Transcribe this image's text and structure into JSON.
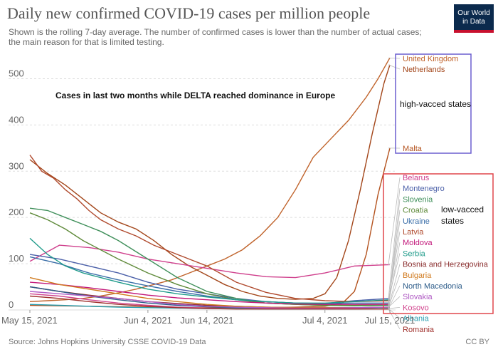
{
  "header": {
    "title": "Daily new confirmed COVID-19 cases per million people",
    "subtitle": "Shown is the rolling 7-day average. The number of confirmed cases is lower than the number of actual cases; the main reason for that is limited testing.",
    "logo_line1": "Our World",
    "logo_line2": "in Data"
  },
  "footer": {
    "source": "Source: Johns Hopkins University CSSE COVID-19 Data",
    "license": "CC BY"
  },
  "annotations": {
    "main": "Cases in last two months while DELTA reached dominance in Europe",
    "high_group": "high-vacced states",
    "low_group_line1": "low-vacced",
    "low_group_line2": "states"
  },
  "colors": {
    "high_box": "#6b5fcf",
    "low_box": "#e0474c",
    "grid": "#dddddd",
    "axis_text": "#666666"
  },
  "chart_data": {
    "type": "line",
    "title": "Daily new confirmed COVID-19 cases per million people",
    "xlabel": "",
    "ylabel": "",
    "x_ticks": [
      "May 15, 2021",
      "Jun 4, 2021",
      "Jun 14, 2021",
      "Jul 4, 2021",
      "Jul 15, 2021"
    ],
    "x_tick_days": [
      0,
      20,
      30,
      50,
      61
    ],
    "x_range": [
      "2021-05-15",
      "2021-07-15"
    ],
    "y_ticks": [
      0,
      100,
      200,
      300,
      400,
      500
    ],
    "ylim": [
      0,
      550
    ],
    "grid": true,
    "legend": "right",
    "series": [
      {
        "name": "United Kingdom",
        "color": "#c0632b",
        "x": [
          0,
          3,
          6,
          9,
          12,
          15,
          18,
          21,
          24,
          27,
          30,
          33,
          36,
          39,
          42,
          45,
          48,
          51,
          54,
          57,
          59,
          61
        ],
        "values": [
          18,
          20,
          22,
          25,
          30,
          37,
          45,
          55,
          65,
          80,
          95,
          110,
          130,
          160,
          200,
          260,
          330,
          370,
          410,
          460,
          500,
          545
        ]
      },
      {
        "name": "Netherlands",
        "color": "#a3461a",
        "x": [
          0,
          3,
          6,
          9,
          12,
          15,
          18,
          21,
          24,
          27,
          30,
          33,
          36,
          39,
          42,
          45,
          48,
          50,
          52,
          54,
          56,
          58,
          60,
          61
        ],
        "values": [
          325,
          295,
          270,
          240,
          210,
          190,
          175,
          150,
          120,
          95,
          75,
          55,
          40,
          30,
          25,
          23,
          25,
          35,
          70,
          150,
          260,
          380,
          490,
          530
        ]
      },
      {
        "name": "Malta",
        "color": "#b4531f",
        "x": [
          0,
          5,
          10,
          15,
          20,
          25,
          30,
          35,
          40,
          45,
          50,
          53,
          55,
          57,
          59,
          61
        ],
        "values": [
          10,
          9,
          8,
          7,
          6,
          5,
          5,
          5,
          5,
          6,
          8,
          15,
          40,
          120,
          250,
          350
        ]
      },
      {
        "name": "Belarus",
        "color": "#cf3f8c",
        "x": [
          0,
          5,
          10,
          15,
          20,
          25,
          30,
          35,
          40,
          45,
          50,
          55,
          61
        ],
        "values": [
          105,
          140,
          135,
          125,
          110,
          100,
          90,
          80,
          72,
          70,
          80,
          95,
          98
        ]
      },
      {
        "name": "Montenegro",
        "color": "#4a5fa8",
        "x": [
          0,
          5,
          10,
          15,
          20,
          25,
          30,
          35,
          40,
          45,
          50,
          55,
          61
        ],
        "values": [
          120,
          110,
          95,
          80,
          60,
          45,
          35,
          25,
          18,
          15,
          14,
          20,
          25
        ]
      },
      {
        "name": "Slovenia",
        "color": "#3f8f5a",
        "x": [
          0,
          3,
          6,
          9,
          12,
          15,
          20,
          25,
          30,
          35,
          40,
          45,
          50,
          55,
          61
        ],
        "values": [
          220,
          215,
          200,
          185,
          170,
          150,
          110,
          70,
          40,
          25,
          15,
          12,
          10,
          9,
          10
        ]
      },
      {
        "name": "Croatia",
        "color": "#5f8a3a",
        "x": [
          0,
          3,
          6,
          9,
          12,
          15,
          20,
          25,
          30,
          35,
          40,
          45,
          50,
          55,
          61
        ],
        "values": [
          210,
          195,
          175,
          150,
          130,
          110,
          80,
          55,
          35,
          22,
          15,
          12,
          10,
          10,
          12
        ]
      },
      {
        "name": "Ukraine",
        "color": "#3a6ea8",
        "x": [
          0,
          5,
          10,
          15,
          20,
          25,
          30,
          35,
          40,
          45,
          50,
          55,
          61
        ],
        "values": [
          115,
          100,
          80,
          65,
          52,
          40,
          30,
          22,
          18,
          15,
          14,
          15,
          15
        ]
      },
      {
        "name": "Latvia",
        "color": "#b04a2e",
        "x": [
          0,
          2,
          4,
          6,
          8,
          10,
          12,
          15,
          18,
          21,
          24,
          27,
          30,
          35,
          40,
          45,
          50,
          55,
          61
        ],
        "values": [
          335,
          300,
          285,
          260,
          240,
          215,
          195,
          175,
          160,
          140,
          125,
          110,
          95,
          60,
          38,
          25,
          20,
          18,
          20
        ]
      },
      {
        "name": "Moldova",
        "color": "#c2187a",
        "x": [
          0,
          5,
          10,
          15,
          20,
          25,
          30,
          35,
          40,
          45,
          50,
          55,
          61
        ],
        "values": [
          60,
          55,
          48,
          40,
          32,
          26,
          22,
          18,
          15,
          13,
          12,
          12,
          12
        ]
      },
      {
        "name": "Serbia",
        "color": "#1f9b8a",
        "x": [
          0,
          3,
          6,
          9,
          12,
          15,
          20,
          25,
          30,
          35,
          40,
          45,
          50,
          55,
          61
        ],
        "values": [
          155,
          120,
          95,
          80,
          70,
          60,
          45,
          35,
          28,
          22,
          18,
          15,
          15,
          18,
          22
        ]
      },
      {
        "name": "Bosnia and Herzegovina",
        "color": "#8a2e2e",
        "x": [
          0,
          5,
          10,
          15,
          20,
          25,
          30,
          35,
          40,
          45,
          50,
          55,
          61
        ],
        "values": [
          50,
          40,
          32,
          25,
          18,
          14,
          10,
          8,
          6,
          5,
          5,
          5,
          6
        ]
      },
      {
        "name": "Bulgaria",
        "color": "#d07a1e",
        "x": [
          0,
          5,
          10,
          15,
          20,
          25,
          30,
          35,
          40,
          45,
          50,
          55,
          61
        ],
        "values": [
          70,
          55,
          45,
          35,
          25,
          18,
          12,
          8,
          6,
          5,
          5,
          5,
          6
        ]
      },
      {
        "name": "North Macedonia",
        "color": "#2e5d8a",
        "x": [
          0,
          5,
          10,
          15,
          20,
          25,
          30,
          35,
          40,
          45,
          50,
          55,
          61
        ],
        "values": [
          50,
          40,
          30,
          22,
          15,
          10,
          7,
          5,
          4,
          3,
          3,
          3,
          3
        ]
      },
      {
        "name": "Slovakia",
        "color": "#b05bc4",
        "x": [
          0,
          5,
          10,
          15,
          20,
          25,
          30,
          35,
          40,
          45,
          50,
          55,
          61
        ],
        "values": [
          40,
          35,
          30,
          25,
          18,
          12,
          8,
          6,
          5,
          4,
          4,
          5,
          6
        ]
      },
      {
        "name": "Kosovo",
        "color": "#d1458e",
        "x": [
          0,
          5,
          10,
          15,
          20,
          25,
          30,
          35,
          40,
          45,
          50,
          55,
          61
        ],
        "values": [
          35,
          30,
          22,
          15,
          10,
          6,
          4,
          3,
          3,
          3,
          3,
          3,
          3
        ]
      },
      {
        "name": "Albania",
        "color": "#2a9fb0",
        "x": [
          0,
          5,
          10,
          15,
          20,
          25,
          30,
          35,
          40,
          45,
          50,
          55,
          61
        ],
        "values": [
          12,
          10,
          8,
          6,
          5,
          4,
          3,
          3,
          2,
          2,
          2,
          2,
          3
        ]
      },
      {
        "name": "Romania",
        "color": "#a0322e",
        "x": [
          0,
          5,
          10,
          15,
          20,
          25,
          30,
          35,
          40,
          45,
          50,
          55,
          61
        ],
        "values": [
          30,
          25,
          18,
          12,
          8,
          5,
          3,
          2,
          2,
          2,
          2,
          2,
          2
        ]
      }
    ]
  }
}
